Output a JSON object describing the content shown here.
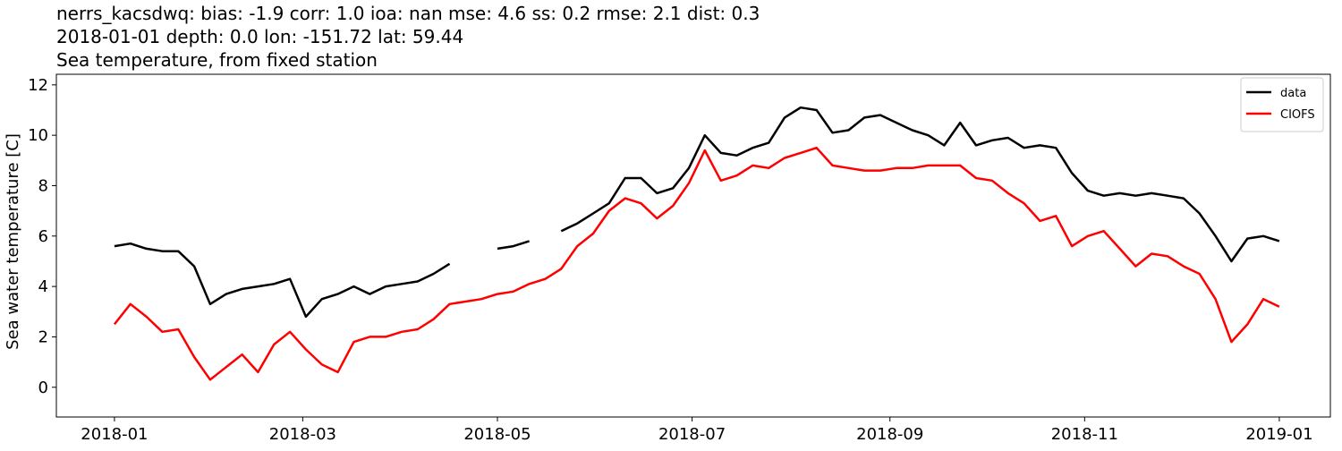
{
  "chart_data": {
    "type": "line",
    "title": "nerrs_kacsdwq: bias: -1.9  corr: 1.0  ioa: nan  mse: 4.6  ss: 0.2  rmse: 2.1  dist: 0.3",
    "subtitle": "2018-01-01 depth: 0.0 lon: -151.72 lat: 59.44",
    "subtitle2": "Sea temperature, from fixed station",
    "y_label": "Sea water temperature [C]",
    "x": [
      0,
      5,
      10,
      15,
      20,
      25,
      30,
      35,
      40,
      45,
      50,
      55,
      60,
      65,
      70,
      75,
      80,
      85,
      90,
      95,
      100,
      105,
      110,
      115,
      120,
      125,
      130,
      135,
      140,
      145,
      150,
      155,
      160,
      165,
      170,
      175,
      180,
      185,
      190,
      195,
      200,
      205,
      210,
      215,
      220,
      225,
      230,
      235,
      240,
      245,
      250,
      255,
      260,
      265,
      270,
      275,
      280,
      285,
      290,
      295,
      300,
      305,
      310,
      315,
      320,
      325,
      330,
      335,
      340,
      345,
      350,
      355,
      360,
      365
    ],
    "series": [
      {
        "name": "data",
        "color": "#000000",
        "values": [
          5.6,
          5.7,
          5.5,
          5.4,
          5.4,
          4.8,
          3.3,
          3.7,
          3.9,
          4.0,
          4.1,
          4.3,
          2.8,
          3.5,
          3.7,
          4.0,
          3.7,
          4.0,
          4.1,
          4.2,
          4.5,
          4.9,
          null,
          null,
          5.5,
          5.6,
          5.8,
          null,
          6.2,
          6.5,
          6.9,
          7.3,
          8.3,
          8.3,
          7.7,
          7.9,
          8.7,
          10.0,
          9.3,
          9.2,
          9.5,
          9.7,
          10.7,
          11.1,
          11.0,
          10.1,
          10.2,
          10.7,
          10.8,
          10.5,
          10.2,
          10.0,
          9.6,
          10.5,
          9.6,
          9.8,
          9.9,
          9.5,
          9.6,
          9.5,
          8.5,
          7.8,
          7.6,
          7.7,
          7.6,
          7.7,
          7.6,
          7.5,
          6.9,
          6.0,
          5.0,
          5.9,
          6.0,
          5.8
        ]
      },
      {
        "name": "CIOFS",
        "color": "#ff0000",
        "values": [
          2.5,
          3.3,
          2.8,
          2.2,
          2.3,
          1.2,
          0.3,
          0.8,
          1.3,
          0.6,
          1.7,
          2.2,
          1.5,
          0.9,
          0.6,
          1.8,
          2.0,
          2.0,
          2.2,
          2.3,
          2.7,
          3.3,
          3.4,
          3.5,
          3.7,
          3.8,
          4.1,
          4.3,
          4.7,
          5.6,
          6.1,
          7.0,
          7.5,
          7.3,
          6.7,
          7.2,
          8.1,
          9.4,
          8.2,
          8.4,
          8.8,
          8.7,
          9.1,
          9.3,
          9.5,
          8.8,
          8.7,
          8.6,
          8.6,
          8.7,
          8.7,
          8.8,
          8.8,
          8.8,
          8.3,
          8.2,
          7.7,
          7.3,
          6.6,
          6.8,
          5.6,
          6.0,
          6.2,
          5.5,
          4.8,
          5.3,
          5.2,
          4.8,
          4.5,
          3.5,
          1.8,
          2.5,
          3.5,
          3.2
        ]
      }
    ],
    "xlim": [
      -18.2,
      381
    ],
    "xticks": [
      {
        "value": 0,
        "label": "2018-01"
      },
      {
        "value": 59,
        "label": "2018-03"
      },
      {
        "value": 120,
        "label": "2018-05"
      },
      {
        "value": 181,
        "label": "2018-07"
      },
      {
        "value": 243,
        "label": "2018-09"
      },
      {
        "value": 304,
        "label": "2018-11"
      },
      {
        "value": 365,
        "label": "2019-01"
      }
    ],
    "ylim": [
      -1.18,
      12.42
    ],
    "yticks": [
      0,
      2,
      4,
      6,
      8,
      10,
      12
    ],
    "legend": "upper right"
  }
}
